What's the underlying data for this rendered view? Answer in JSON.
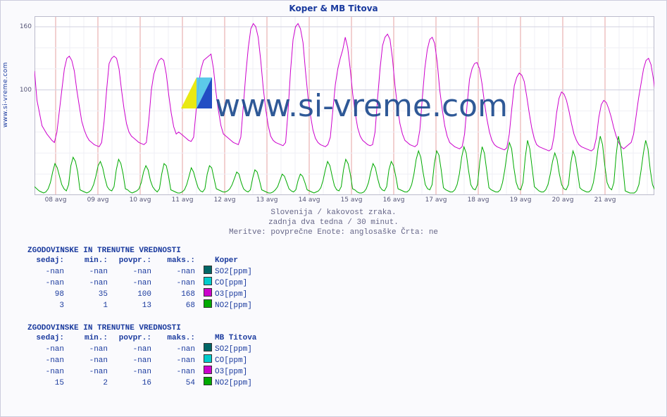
{
  "title": "Koper & MB Titova",
  "ylabel_link": "www.si-vreme.com",
  "watermark_text": "www.si-vreme.com",
  "chart": {
    "type": "line",
    "background_color": "#ffffff",
    "grid_major_color": "#d0d0e0",
    "grid_minor_color": "#efeff5",
    "yaxis": {
      "min": 0,
      "max": 170,
      "ticks": [
        100,
        160
      ],
      "label_fontsize": 9,
      "label_color": "#555577"
    },
    "xaxis": {
      "labels": [
        "08 avg",
        "09 avg",
        "10 avg",
        "11 avg",
        "12 avg",
        "13 avg",
        "14 avg",
        "15 avg",
        "16 avg",
        "17 avg",
        "18 avg",
        "19 avg",
        "20 avg",
        "21 avg"
      ],
      "label_fontsize": 9,
      "label_color": "#555577"
    },
    "series": [
      {
        "name": "O3_koper",
        "color": "#cc00cc",
        "stroke_width": 1,
        "values": [
          118,
          90,
          78,
          66,
          62,
          58,
          55,
          52,
          50,
          60,
          80,
          100,
          120,
          130,
          132,
          128,
          118,
          100,
          85,
          70,
          62,
          56,
          52,
          50,
          48,
          47,
          46,
          50,
          70,
          100,
          125,
          130,
          132,
          130,
          120,
          100,
          82,
          68,
          60,
          56,
          54,
          52,
          50,
          49,
          48,
          50,
          72,
          100,
          115,
          122,
          128,
          130,
          128,
          115,
          95,
          78,
          65,
          58,
          60,
          58,
          56,
          54,
          52,
          51,
          55,
          80,
          105,
          120,
          128,
          130,
          132,
          134,
          120,
          98,
          80,
          66,
          58,
          56,
          54,
          52,
          50,
          49,
          48,
          55,
          85,
          115,
          140,
          158,
          163,
          160,
          150,
          128,
          102,
          82,
          66,
          56,
          52,
          50,
          49,
          48,
          47,
          50,
          80,
          118,
          148,
          160,
          163,
          158,
          145,
          118,
          94,
          76,
          62,
          54,
          50,
          48,
          47,
          46,
          48,
          55,
          80,
          105,
          120,
          130,
          138,
          150,
          140,
          120,
          96,
          78,
          64,
          56,
          52,
          50,
          48,
          47,
          48,
          60,
          92,
          120,
          142,
          150,
          153,
          148,
          130,
          104,
          84,
          68,
          58,
          52,
          50,
          48,
          47,
          46,
          48,
          62,
          92,
          120,
          138,
          148,
          150,
          144,
          126,
          100,
          82,
          66,
          56,
          50,
          48,
          46,
          45,
          44,
          46,
          58,
          85,
          110,
          120,
          125,
          126,
          120,
          106,
          88,
          72,
          60,
          52,
          48,
          46,
          45,
          44,
          43,
          45,
          58,
          82,
          104,
          112,
          116,
          114,
          108,
          94,
          78,
          64,
          54,
          48,
          46,
          45,
          44,
          43,
          42,
          44,
          56,
          78,
          92,
          98,
          96,
          90,
          80,
          68,
          58,
          52,
          48,
          46,
          45,
          44,
          43,
          42,
          44,
          54,
          74,
          86,
          90,
          88,
          82,
          74,
          64,
          56,
          50,
          46,
          44,
          46,
          48,
          50,
          58,
          75,
          92,
          106,
          120,
          128,
          130,
          124,
          110,
          92,
          76,
          64,
          98,
          100,
          98
        ]
      },
      {
        "name": "NO2_both",
        "color": "#00aa00",
        "stroke_width": 1,
        "values": [
          8,
          6,
          4,
          3,
          2,
          3,
          6,
          12,
          22,
          30,
          26,
          18,
          10,
          6,
          4,
          10,
          28,
          36,
          32,
          22,
          5,
          4,
          3,
          2,
          3,
          5,
          10,
          18,
          28,
          32,
          26,
          16,
          8,
          5,
          4,
          8,
          24,
          34,
          30,
          20,
          6,
          5,
          3,
          2,
          3,
          4,
          6,
          12,
          22,
          28,
          24,
          14,
          8,
          5,
          3,
          6,
          20,
          30,
          28,
          18,
          5,
          4,
          3,
          2,
          2,
          3,
          5,
          10,
          18,
          26,
          22,
          14,
          7,
          4,
          3,
          6,
          20,
          28,
          26,
          16,
          6,
          5,
          4,
          3,
          3,
          4,
          6,
          10,
          16,
          22,
          20,
          12,
          6,
          4,
          3,
          5,
          16,
          24,
          22,
          14,
          5,
          4,
          3,
          2,
          2,
          3,
          5,
          8,
          14,
          20,
          18,
          12,
          6,
          4,
          3,
          5,
          14,
          20,
          18,
          12,
          5,
          4,
          3,
          2,
          3,
          4,
          7,
          14,
          24,
          32,
          28,
          18,
          9,
          5,
          4,
          8,
          24,
          34,
          30,
          20,
          6,
          5,
          3,
          2,
          2,
          3,
          6,
          12,
          22,
          30,
          26,
          16,
          8,
          5,
          4,
          8,
          24,
          32,
          28,
          18,
          6,
          5,
          4,
          3,
          3,
          5,
          10,
          20,
          34,
          42,
          36,
          22,
          10,
          6,
          5,
          10,
          30,
          42,
          38,
          24,
          7,
          5,
          4,
          3,
          3,
          5,
          10,
          20,
          36,
          46,
          40,
          24,
          10,
          6,
          5,
          10,
          32,
          46,
          40,
          24,
          7,
          5,
          4,
          3,
          3,
          5,
          12,
          24,
          40,
          50,
          44,
          26,
          12,
          6,
          5,
          12,
          36,
          52,
          44,
          26,
          8,
          6,
          4,
          3,
          3,
          5,
          10,
          20,
          32,
          40,
          34,
          20,
          10,
          6,
          5,
          10,
          30,
          42,
          36,
          22,
          7,
          5,
          4,
          3,
          3,
          5,
          12,
          26,
          44,
          56,
          48,
          28,
          12,
          7,
          5,
          12,
          38,
          56,
          46,
          26,
          4,
          3,
          2,
          2,
          2,
          4,
          10,
          24,
          40,
          52,
          44,
          24,
          10,
          5,
          4,
          8,
          26,
          38,
          32,
          18
        ]
      }
    ]
  },
  "caption": {
    "line1": "Slovenija / kakovost zraka.",
    "line2": "zadnja dva tedna / 30 minut.",
    "line3": "Meritve: povprečne  Enote: anglosaške  Črta: ne"
  },
  "tables": [
    {
      "title": "ZGODOVINSKE IN TRENUTNE VREDNOSTI",
      "columns": [
        "sedaj:",
        "min.:",
        "povpr.:",
        "maks.:"
      ],
      "station": "Koper",
      "rows": [
        {
          "cells": [
            "-nan",
            "-nan",
            "-nan",
            "-nan"
          ],
          "swatch": "#006666",
          "label": "SO2[ppm]"
        },
        {
          "cells": [
            "-nan",
            "-nan",
            "-nan",
            "-nan"
          ],
          "swatch": "#00cccc",
          "label": "CO[ppm]"
        },
        {
          "cells": [
            "98",
            "35",
            "100",
            "168"
          ],
          "swatch": "#cc00cc",
          "label": "O3[ppm]"
        },
        {
          "cells": [
            "3",
            "1",
            "13",
            "68"
          ],
          "swatch": "#00aa00",
          "label": "NO2[ppm]"
        }
      ]
    },
    {
      "title": "ZGODOVINSKE IN TRENUTNE VREDNOSTI",
      "columns": [
        "sedaj:",
        "min.:",
        "povpr.:",
        "maks.:"
      ],
      "station": "MB Titova",
      "rows": [
        {
          "cells": [
            "-nan",
            "-nan",
            "-nan",
            "-nan"
          ],
          "swatch": "#006666",
          "label": "SO2[ppm]"
        },
        {
          "cells": [
            "-nan",
            "-nan",
            "-nan",
            "-nan"
          ],
          "swatch": "#00cccc",
          "label": "CO[ppm]"
        },
        {
          "cells": [
            "-nan",
            "-nan",
            "-nan",
            "-nan"
          ],
          "swatch": "#cc00cc",
          "label": "O3[ppm]"
        },
        {
          "cells": [
            "15",
            "2",
            "16",
            "54"
          ],
          "swatch": "#00aa00",
          "label": "NO2[ppm]"
        }
      ]
    }
  ]
}
